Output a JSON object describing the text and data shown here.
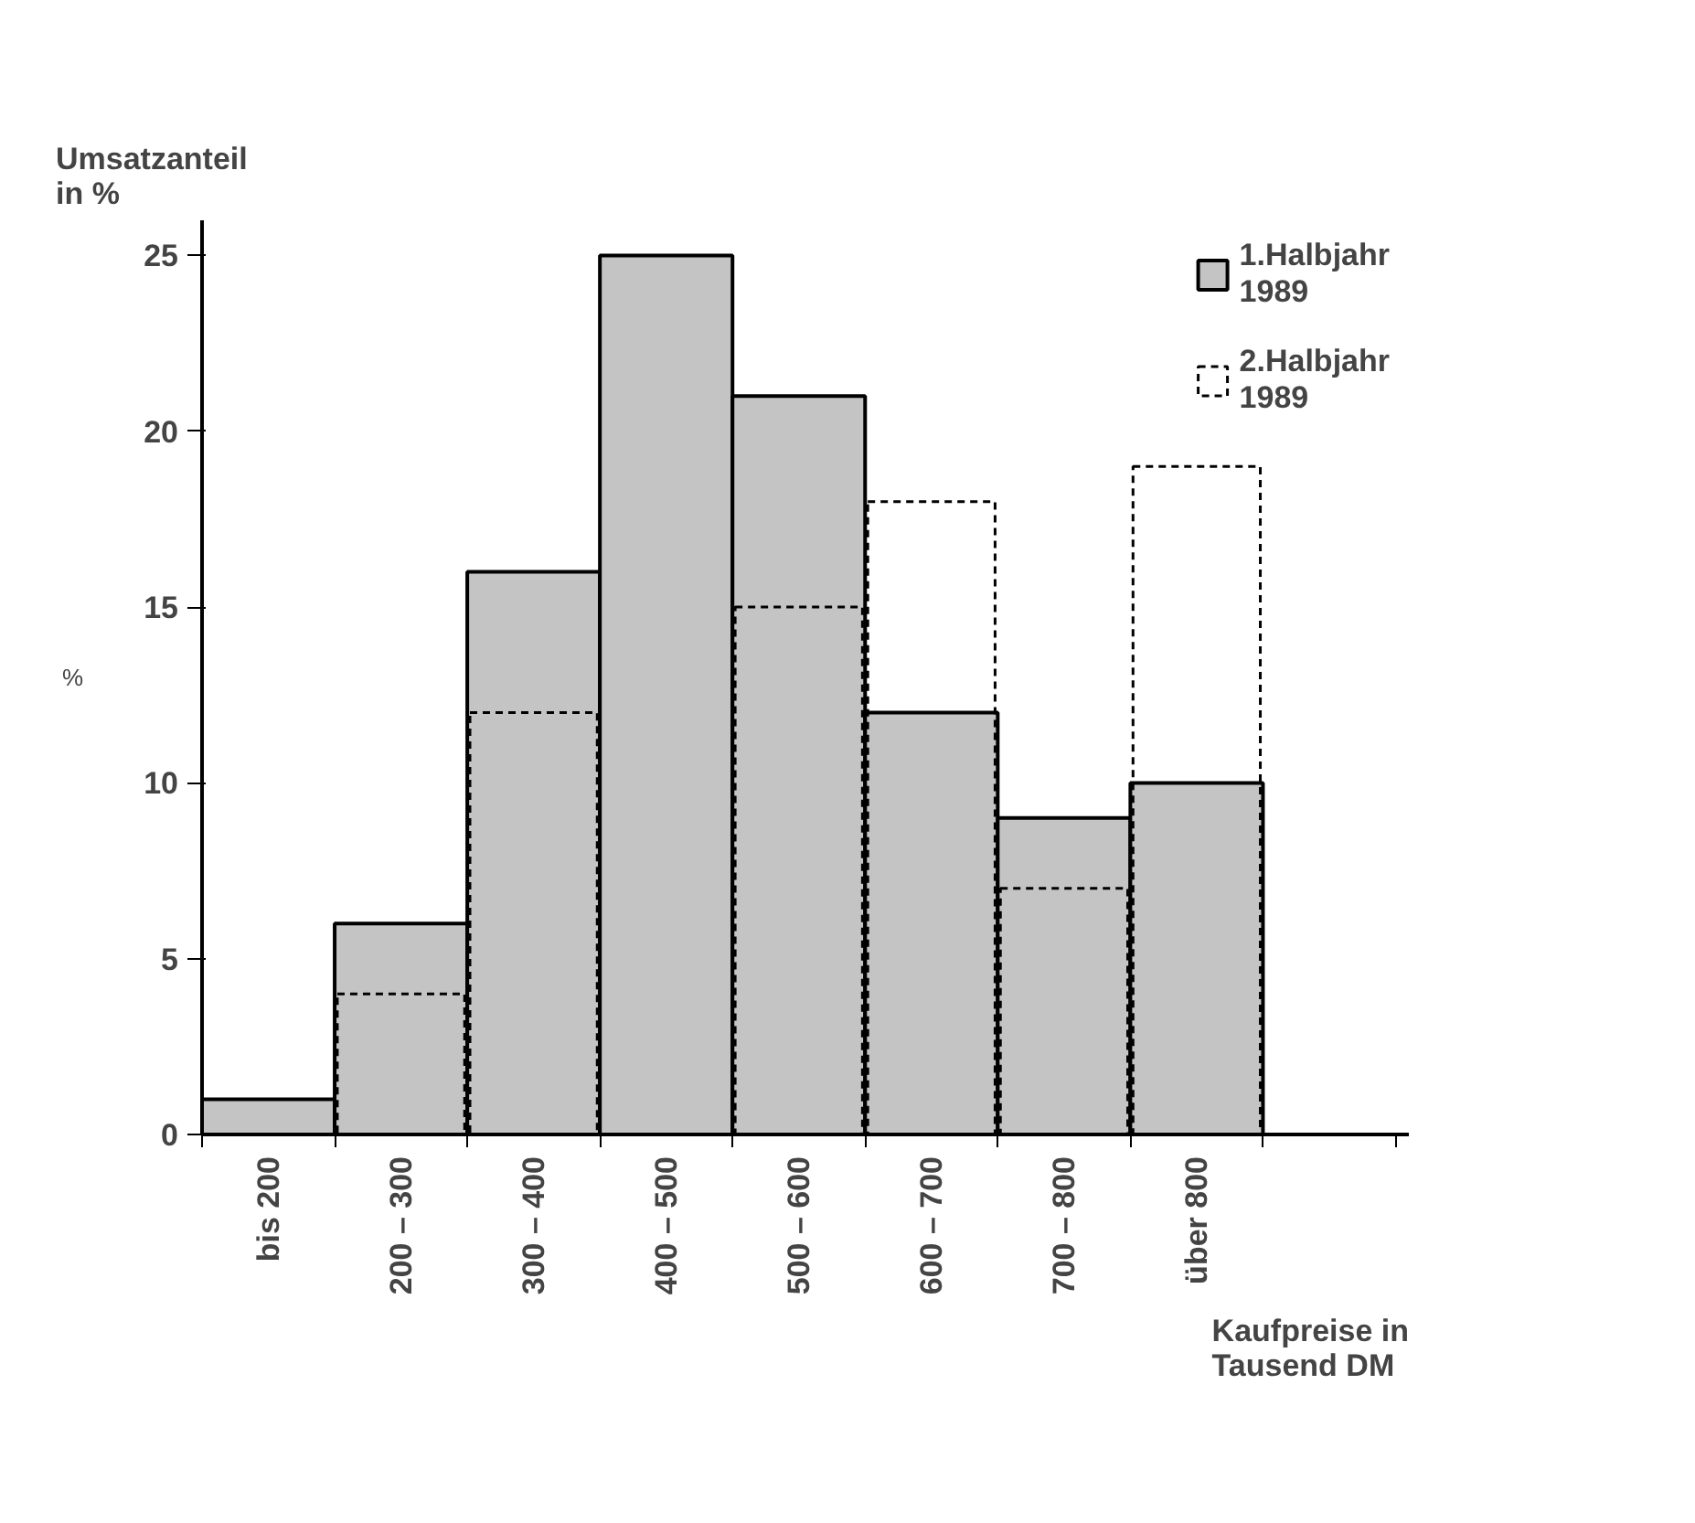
{
  "chart_data": {
    "type": "bar",
    "title": "Umsatzanteil\nin %",
    "ylabel": "%",
    "xlabel": "Kaufpreise in\nTausend DM",
    "categories": [
      "bis 200",
      "200 – 300",
      "300 – 400",
      "400 – 500",
      "500 – 600",
      "600 – 700",
      "700 – 800",
      "über 800"
    ],
    "series": [
      {
        "name": "1.Halbjahr\n1989",
        "color": "#c4c4c4",
        "values": [
          1,
          6,
          16,
          25,
          21,
          12,
          9,
          10
        ]
      },
      {
        "name": "2.Halbjahr\n1989",
        "color": "#000000",
        "line_style": "dashed",
        "values": [
          null,
          4,
          12,
          null,
          15,
          18,
          7,
          19
        ]
      }
    ],
    "ylim": [
      0,
      26
    ],
    "yticks": [
      0,
      5,
      10,
      15,
      20,
      25
    ],
    "grid": false,
    "legend": "top right"
  }
}
